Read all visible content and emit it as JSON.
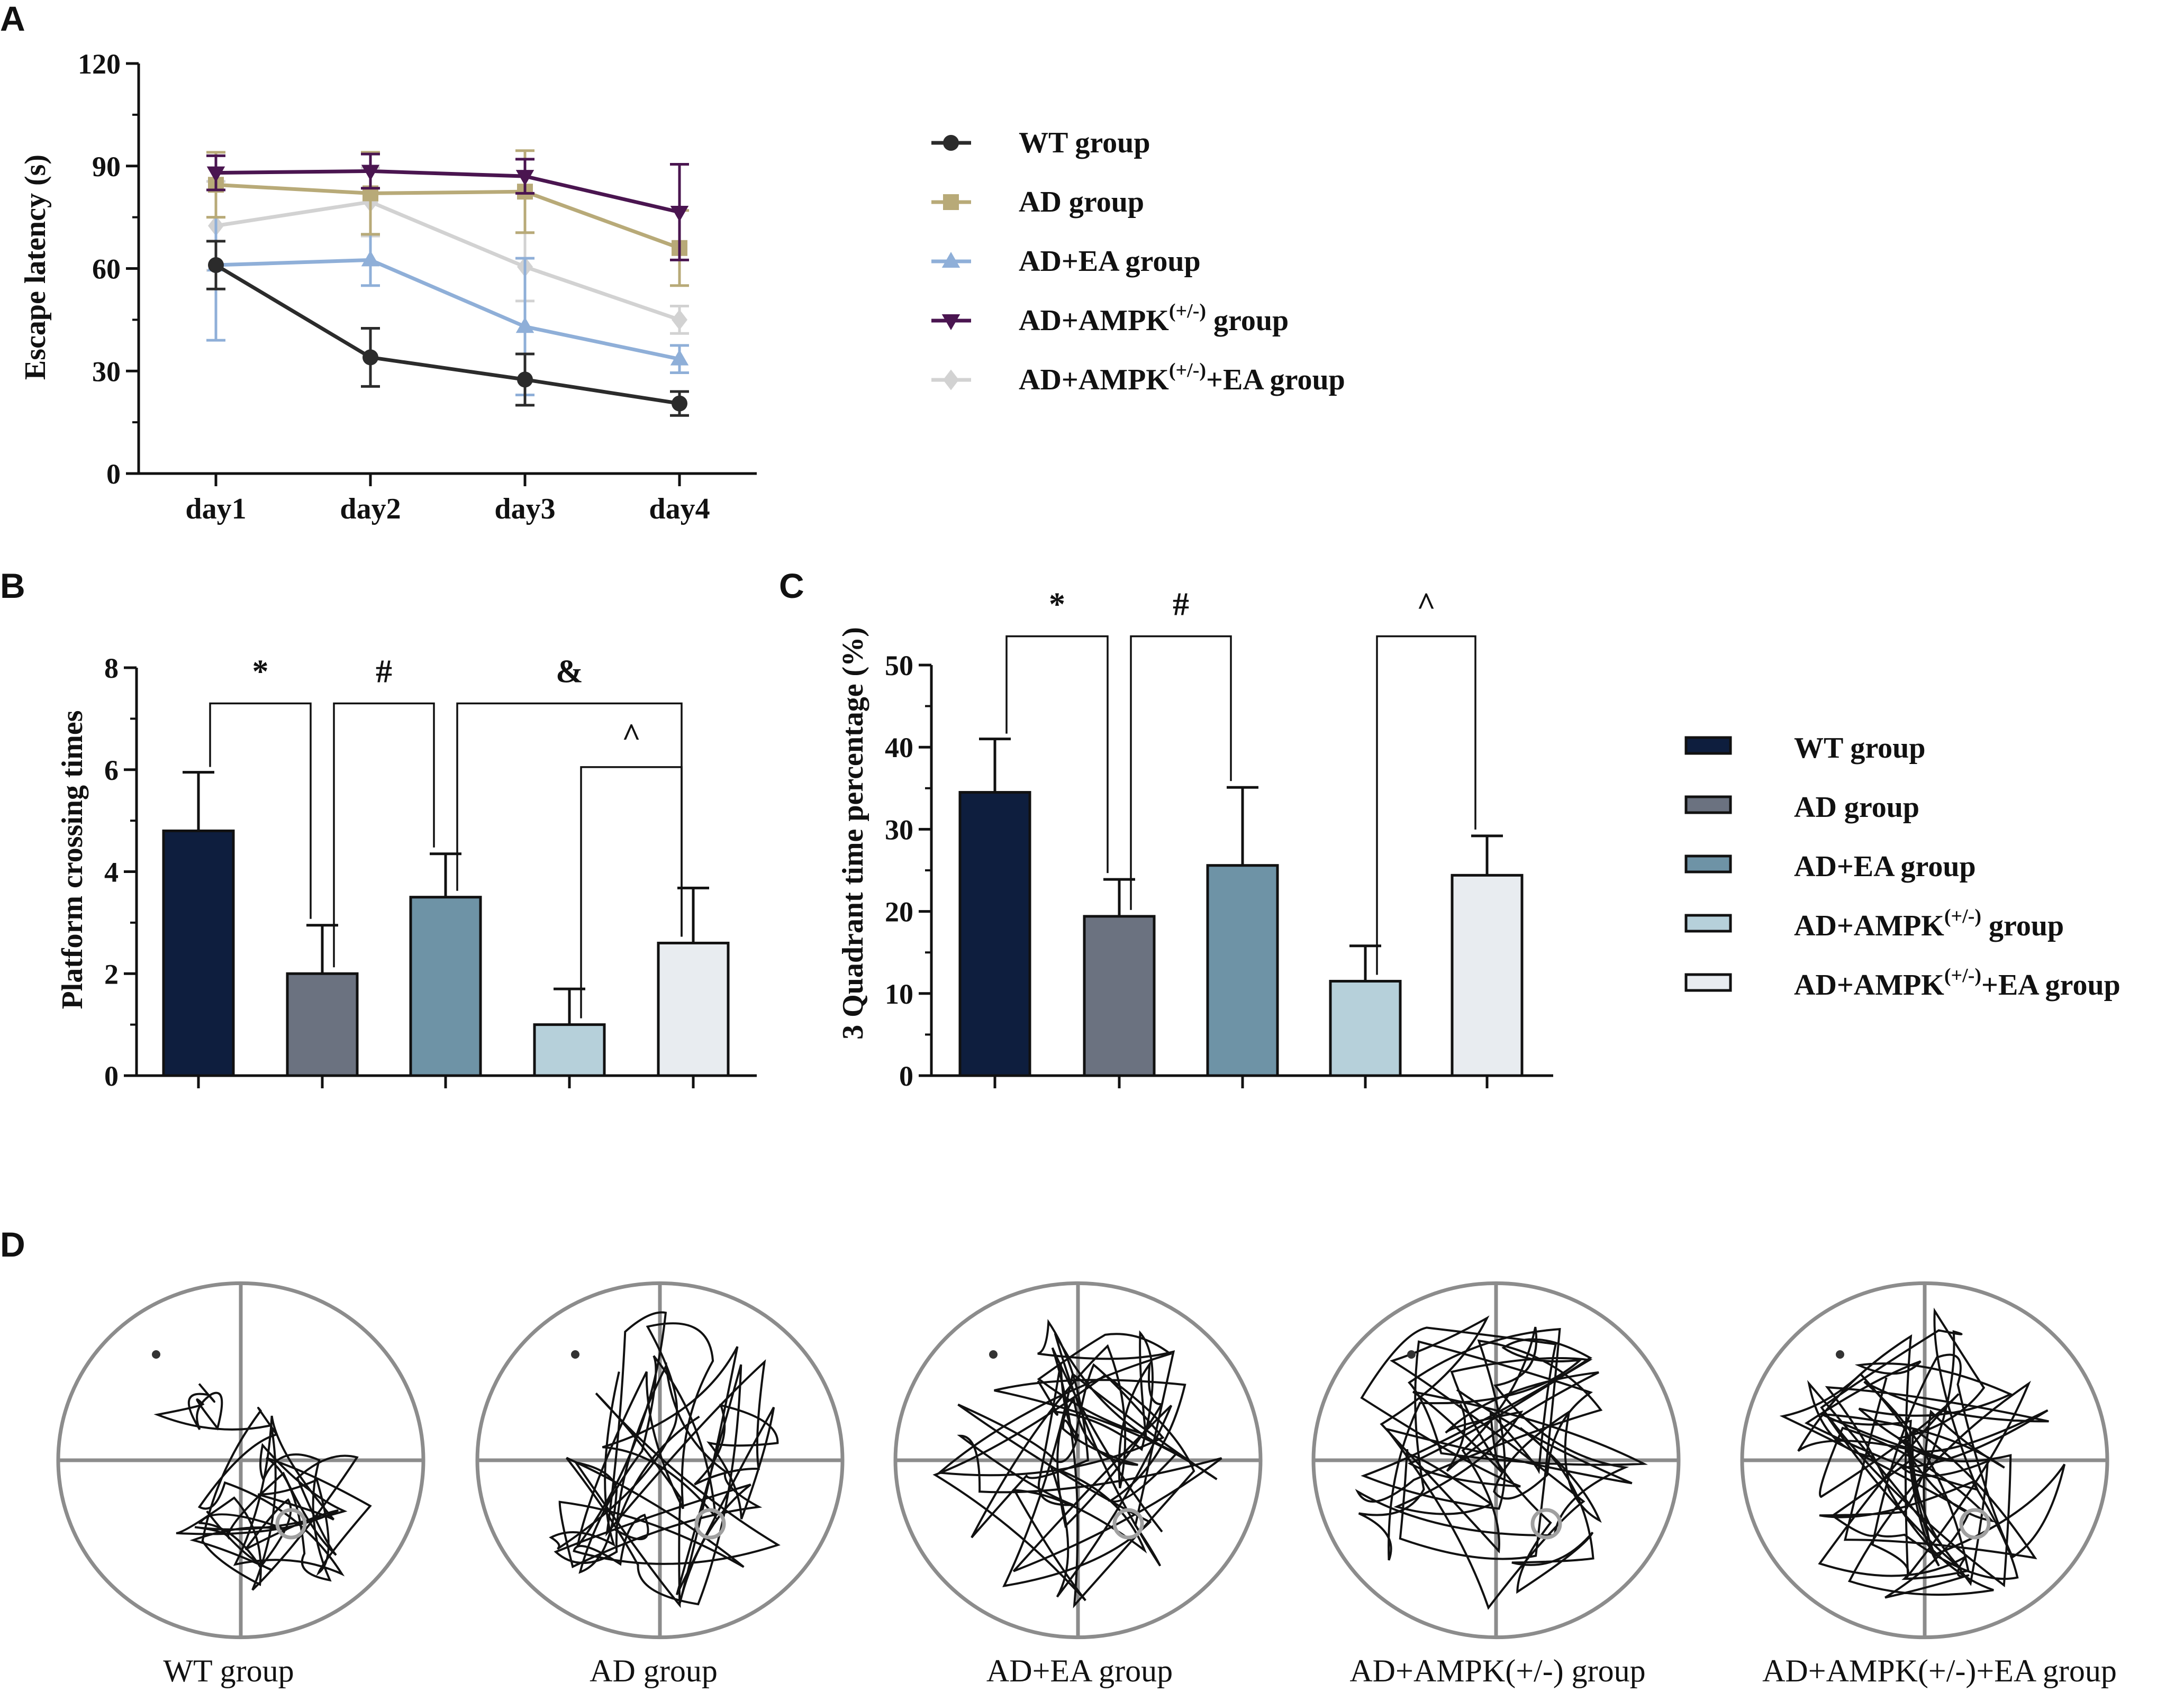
{
  "colors": {
    "wt": "#0e1e3e",
    "ad": "#6b7280",
    "ad_ea": "#6e93a6",
    "ad_ampk": "#b6d0da",
    "ad_ampk_ea": "#e8ecf0",
    "line_wt": "#2b2b2b",
    "line_ad": "#b8aa78",
    "line_ad_ea": "#8fafd8",
    "line_ad_ampk": "#4a1550",
    "line_ad_ampk_ea": "#d2d2d2",
    "track": "#111111",
    "quadrant": "#8c8c8c"
  },
  "chart_data": [
    {
      "id": "A",
      "panel_label": "A",
      "type": "line",
      "ylabel": "Escape latency (s)",
      "ylim": [
        0,
        120
      ],
      "yticks": [
        "0",
        "30",
        "60",
        "90",
        "120"
      ],
      "categories": [
        "day1",
        "day2",
        "day3",
        "day4"
      ],
      "legend_position": "right",
      "series": [
        {
          "key": "wt",
          "name": "WT group",
          "sup": "",
          "suffix": "",
          "marker": "circle",
          "values": [
            61,
            34,
            27.5,
            20.5
          ],
          "errors": [
            7,
            8.5,
            7.5,
            3.5
          ]
        },
        {
          "key": "ad",
          "name": "AD group",
          "sup": "",
          "suffix": "",
          "marker": "square",
          "values": [
            84.5,
            82,
            82.5,
            66
          ],
          "errors": [
            9.5,
            12,
            12,
            11
          ]
        },
        {
          "key": "ad_ea",
          "name": "AD+EA  group",
          "sup": "",
          "suffix": "",
          "marker": "triangle",
          "values": [
            61,
            62.5,
            43,
            33.5
          ],
          "errors": [
            22,
            7.5,
            20,
            4
          ]
        },
        {
          "key": "ad_ampk",
          "name": "AD+AMPK",
          "sup": "(+/-)",
          "suffix": " group",
          "marker": "triangle-down",
          "values": [
            88,
            88.5,
            87,
            76.5
          ],
          "errors": [
            5,
            5,
            5,
            14
          ]
        },
        {
          "key": "ad_ampk_ea",
          "name": "AD+AMPK",
          "sup": "(+/-)",
          "suffix": "+EA  group",
          "marker": "diamond",
          "values": [
            72.5,
            79.5,
            60.5,
            45
          ],
          "errors": [
            13,
            10,
            10,
            4
          ]
        }
      ]
    },
    {
      "id": "B",
      "panel_label": "B",
      "type": "bar",
      "ylabel": "Platform crossing times",
      "ylim": [
        0,
        8
      ],
      "yticks": [
        "0",
        "2",
        "4",
        "6",
        "8"
      ],
      "categories": [
        "WT group",
        "AD group",
        "AD+EA group",
        "AD+AMPK(+/-) group",
        "AD+AMPK(+/-)+EA group"
      ],
      "values": [
        4.8,
        2.0,
        3.5,
        1.0,
        2.6
      ],
      "errors": [
        1.15,
        0.95,
        0.85,
        0.7,
        1.08
      ],
      "annotations": [
        {
          "symbol": "*",
          "from": 0,
          "to": 1,
          "level": 7.3
        },
        {
          "symbol": "#",
          "from": 1,
          "to": 2,
          "level": 7.3
        },
        {
          "symbol": "&",
          "from": 2,
          "to": 4,
          "level": 7.3
        },
        {
          "symbol": "^",
          "from": 3,
          "to": 4,
          "level": 6.05
        }
      ]
    },
    {
      "id": "C",
      "panel_label": "C",
      "type": "bar",
      "ylabel": "3 Quadrant time percentage  (%)",
      "ylim": [
        0,
        50
      ],
      "yticks": [
        "0",
        "10",
        "20",
        "30",
        "40",
        "50"
      ],
      "categories": [
        "WT group",
        "AD group",
        "AD+EA group",
        "AD+AMPK(+/-) group",
        "AD+AMPK(+/-)+EA group"
      ],
      "values": [
        34.5,
        19.4,
        25.6,
        11.5,
        24.4
      ],
      "errors": [
        6.5,
        4.5,
        9.5,
        4.3,
        4.8
      ],
      "annotations": [
        {
          "symbol": "*",
          "from": 0,
          "to": 1,
          "level": 53.5
        },
        {
          "symbol": "#",
          "from": 1,
          "to": 2,
          "level": 53.5
        },
        {
          "symbol": "^",
          "from": 3,
          "to": 4,
          "level": 53.5
        }
      ]
    }
  ],
  "bar_legend": [
    {
      "key": "wt",
      "name": "WT group",
      "sup": "",
      "suffix": ""
    },
    {
      "key": "ad",
      "name": "AD group",
      "sup": "",
      "suffix": ""
    },
    {
      "key": "ad_ea",
      "name": "AD+EA  group",
      "sup": "",
      "suffix": ""
    },
    {
      "key": "ad_ampk",
      "name": "AD+AMPK",
      "sup": "(+/-)",
      "suffix": "  group"
    },
    {
      "key": "ad_ampk_ea",
      "name": "AD+AMPK",
      "sup": "(+/-)",
      "suffix": "+EA  group"
    }
  ],
  "panel_d": {
    "panel_label": "D",
    "tracks": [
      {
        "key": "wt",
        "label": "WT group",
        "platform_quadrant": "bottom-right"
      },
      {
        "key": "ad",
        "label": "AD group",
        "platform_quadrant": "bottom-right"
      },
      {
        "key": "ad_ea",
        "label": "AD+EA group",
        "platform_quadrant": "bottom-right"
      },
      {
        "key": "ad_ampk",
        "label": "AD+AMPK(+/-) group",
        "platform_quadrant": "bottom-right"
      },
      {
        "key": "ad_ampk_ea",
        "label": "AD+AMPK(+/-)+EA group",
        "platform_quadrant": "bottom-right"
      }
    ]
  }
}
